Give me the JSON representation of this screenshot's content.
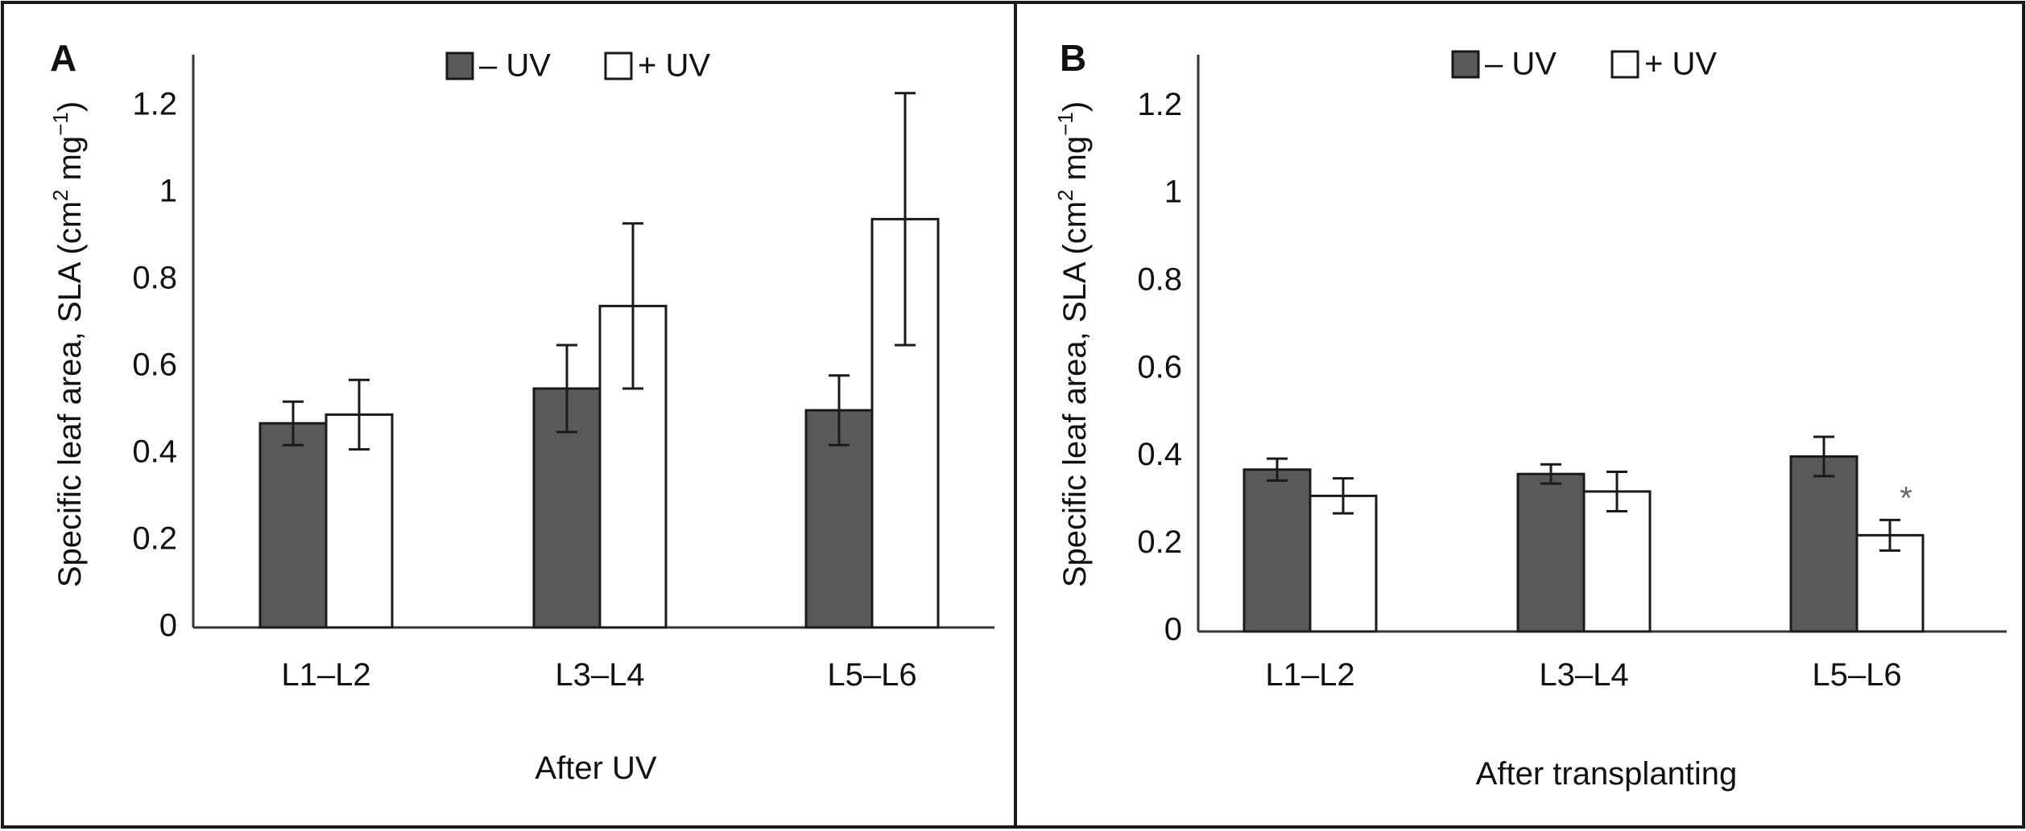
{
  "chart_data": [
    {
      "type": "bar",
      "panel_label": "A",
      "xlabel": "After UV",
      "ylabel": {
        "text": "Specific leaf area, SLA (cm",
        "sup1": "2",
        "mid": " mg",
        "sup2": "−1",
        "end": ")"
      },
      "categories": [
        "L1–L2",
        "L3–L4",
        "L5–L6"
      ],
      "ylim": [
        0,
        1.3
      ],
      "yticks": [
        0,
        0.2,
        0.4,
        0.6,
        0.8,
        1,
        1.2
      ],
      "ytick_labels": [
        "0",
        "0.2",
        "0.4",
        "0.6",
        "0.8",
        "1",
        "1.2"
      ],
      "legend": {
        "position": "top-center"
      },
      "series": [
        {
          "name": "– UV",
          "color": "#595959",
          "values": [
            0.47,
            0.55,
            0.5
          ],
          "errors": [
            0.05,
            0.1,
            0.08
          ],
          "significance": [
            "",
            "",
            ""
          ]
        },
        {
          "name": "+ UV",
          "color": "#ffffff",
          "values": [
            0.49,
            0.74,
            0.94
          ],
          "errors": [
            0.08,
            0.19,
            0.29
          ],
          "significance": [
            "",
            "",
            ""
          ]
        }
      ]
    },
    {
      "type": "bar",
      "panel_label": "B",
      "xlabel": "After transplanting",
      "ylabel": {
        "text": "Specific leaf area, SLA (cm",
        "sup1": "2",
        "mid": " mg",
        "sup2": "−1",
        "end": ")"
      },
      "categories": [
        "L1–L2",
        "L3–L4",
        "L5–L6"
      ],
      "ylim": [
        0,
        1.3
      ],
      "yticks": [
        0,
        0.2,
        0.4,
        0.6,
        0.8,
        1,
        1.2
      ],
      "ytick_labels": [
        "0",
        "0.2",
        "0.4",
        "0.6",
        "0.8",
        "1",
        "1.2"
      ],
      "legend": {
        "position": "top-center"
      },
      "series": [
        {
          "name": "– UV",
          "color": "#595959",
          "values": [
            0.37,
            0.36,
            0.4
          ],
          "errors": [
            0.025,
            0.022,
            0.045
          ],
          "significance": [
            "",
            "",
            ""
          ]
        },
        {
          "name": "+ UV",
          "color": "#ffffff",
          "values": [
            0.31,
            0.32,
            0.22
          ],
          "errors": [
            0.04,
            0.045,
            0.035
          ],
          "significance": [
            "",
            "",
            "*"
          ]
        }
      ]
    }
  ]
}
